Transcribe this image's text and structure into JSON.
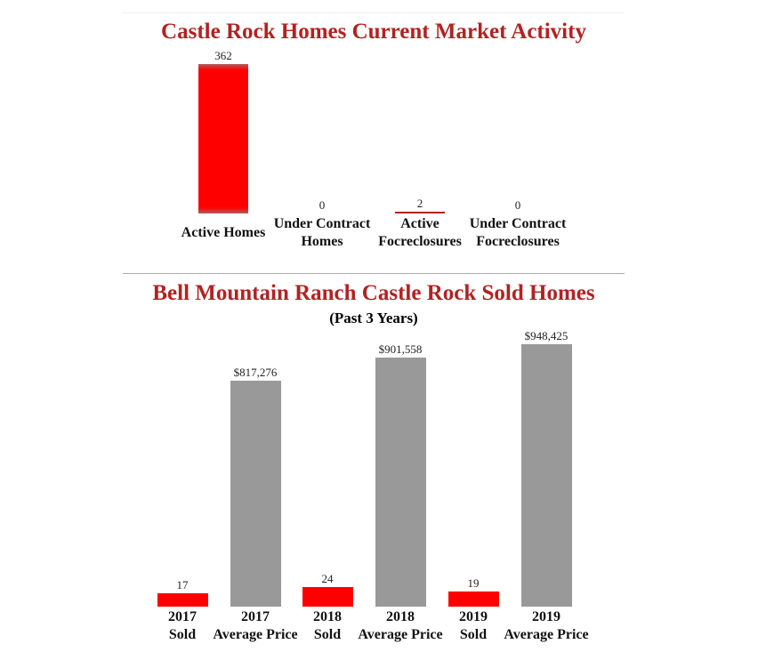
{
  "chart_data": [
    {
      "type": "bar",
      "title": "Castle Rock Homes Current Market Activity",
      "categories": [
        "Active Homes",
        "Under Contract Homes",
        "Active Focreclosures",
        "Under Contract Focreclosures"
      ],
      "values": [
        362,
        0,
        2,
        0
      ],
      "value_labels": [
        "362",
        "0",
        "2",
        "0"
      ],
      "colors": [
        "#ff0000",
        "#ff0000",
        "#b22222",
        "#ff0000"
      ]
    },
    {
      "type": "bar",
      "title": "Bell Mountain Ranch Castle Rock Sold Homes",
      "subtitle": "(Past 3 Years)",
      "categories": [
        "2017 Sold",
        "2017 Average Price",
        "2018 Sold",
        "2018 Average Price",
        "2019 Sold",
        "2019 Average Price"
      ],
      "category_lines": [
        [
          "2017",
          "Sold"
        ],
        [
          "2017",
          "Average Price"
        ],
        [
          "2018",
          "Sold"
        ],
        [
          "2018",
          "Average Price"
        ],
        [
          "2019",
          "Sold"
        ],
        [
          "2019",
          "Average Price"
        ]
      ],
      "values": [
        17,
        817276,
        24,
        901558,
        19,
        948425
      ],
      "value_labels": [
        "17",
        "$817,276",
        "24",
        "$901,558",
        "19",
        "$948,425"
      ],
      "colors": [
        "#ff0000",
        "#999999",
        "#ff0000",
        "#999999",
        "#ff0000",
        "#999999"
      ]
    }
  ]
}
